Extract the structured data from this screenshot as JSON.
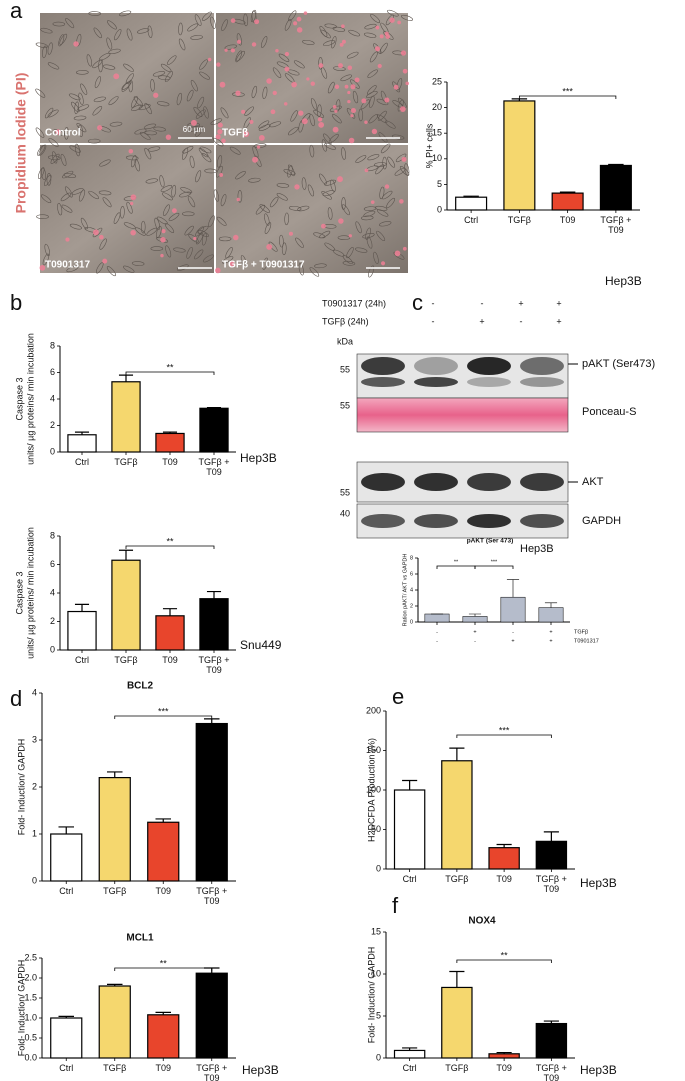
{
  "panel_labels": [
    "a",
    "b",
    "c",
    "d",
    "e",
    "f"
  ],
  "micrographs": {
    "side_label": "Propidium Iodide (PI)",
    "scale_bar": "60 µm",
    "images": [
      "Control",
      "TGFβ",
      "T0901317",
      "TGFβ + T0901317"
    ]
  },
  "blot": {
    "treatments": [
      {
        "name": "T0901317 (24h)",
        "signs": [
          "-",
          "-",
          "+",
          "+"
        ]
      },
      {
        "name": "TGFβ (24h)",
        "signs": [
          "-",
          "+",
          "-",
          "+"
        ]
      }
    ],
    "unit": "kDa",
    "bands": [
      {
        "marker": "55",
        "label": "pAKT (Ser473)"
      },
      {
        "marker": "55",
        "label": "Ponceau-S"
      },
      {
        "marker": "55",
        "label": "AKT"
      },
      {
        "marker": "40",
        "label": "GAPDH"
      }
    ],
    "cell_line": "Hep3B"
  },
  "chart_data": [
    {
      "type": "bar",
      "ylabel": [
        "% PI+ cells"
      ],
      "categories": [
        "Ctrl",
        "TGFβ",
        "T09",
        "TGFβ + T09"
      ],
      "values": [
        2.5,
        21.3,
        3.3,
        8.7
      ],
      "errors": [
        0.2,
        0.4,
        0.2,
        0.2
      ],
      "colors": [
        "#ffffff",
        "#f5d76e",
        "#e8452c",
        "#000000"
      ],
      "ylim": [
        0,
        25
      ],
      "yticks": [
        0,
        5,
        10,
        15,
        20,
        25
      ],
      "significance": {
        "pair": [
          1,
          3
        ],
        "label": "***"
      },
      "footnote": "Hep3B"
    },
    {
      "type": "bar",
      "ylabel": [
        "Caspase 3",
        "units/ µg proteins/ min incubation"
      ],
      "categories": [
        "Ctrl",
        "TGFβ",
        "T09",
        "TGFβ + T09"
      ],
      "values": [
        1.3,
        5.3,
        1.4,
        3.3
      ],
      "errors": [
        0.2,
        0.5,
        0.1,
        0.05
      ],
      "colors": [
        "#ffffff",
        "#f5d76e",
        "#e8452c",
        "#000000"
      ],
      "ylim": [
        0,
        8
      ],
      "yticks": [
        0,
        2,
        4,
        6,
        8
      ],
      "significance": {
        "pair": [
          1,
          3
        ],
        "label": "**"
      },
      "footnote": "Hep3B"
    },
    {
      "type": "bar",
      "ylabel": [
        "Caspase 3",
        "units/ µg proteins/ min incubation"
      ],
      "categories": [
        "Ctrl",
        "TGFβ",
        "T09",
        "TGFβ + T09"
      ],
      "values": [
        2.7,
        6.3,
        2.4,
        3.6
      ],
      "errors": [
        0.5,
        0.7,
        0.5,
        0.5
      ],
      "colors": [
        "#ffffff",
        "#f5d76e",
        "#e8452c",
        "#000000"
      ],
      "ylim": [
        0,
        8
      ],
      "yticks": [
        0,
        2,
        4,
        6,
        8
      ],
      "significance": {
        "pair": [
          1,
          3
        ],
        "label": "**"
      },
      "footnote": "Snu449"
    },
    {
      "type": "bar",
      "title": "pAKT (Ser 473)",
      "ylabel": [
        "Ration pAKT/ AKT vs GAPDH"
      ],
      "categories": [
        null,
        null,
        null,
        null
      ],
      "values": [
        1.0,
        0.7,
        3.1,
        1.8
      ],
      "errors": [
        0,
        0.3,
        2.2,
        0.6
      ],
      "colors": [
        "#b5bccb",
        "#b5bccb",
        "#b5bccb",
        "#b5bccb"
      ],
      "ylim": [
        0,
        8
      ],
      "yticks": [
        0,
        2,
        4,
        6,
        8
      ],
      "significance_pairs": [
        {
          "pair": [
            0,
            1
          ],
          "label": "**"
        },
        {
          "pair": [
            1,
            2
          ],
          "label": "***"
        }
      ],
      "x_rows": [
        {
          "name": "TGFβ",
          "signs": [
            "-",
            "+",
            "-",
            "+"
          ]
        },
        {
          "name": "T0901317",
          "signs": [
            "-",
            "-",
            "+",
            "+"
          ]
        }
      ]
    },
    {
      "type": "bar",
      "title": "BCL2",
      "ylabel": [
        "Fold- Induction/ GAPDH"
      ],
      "categories": [
        "Ctrl",
        "TGFβ",
        "T09",
        "TGFβ + T09"
      ],
      "values": [
        1.0,
        2.2,
        1.25,
        3.35
      ],
      "errors": [
        0.15,
        0.12,
        0.07,
        0.1
      ],
      "colors": [
        "#ffffff",
        "#f5d76e",
        "#e8452c",
        "#000000"
      ],
      "ylim": [
        0,
        4
      ],
      "yticks": [
        0,
        1,
        2,
        3,
        4
      ],
      "significance": {
        "pair": [
          1,
          3
        ],
        "label": "***"
      }
    },
    {
      "type": "bar",
      "title": "MCL1",
      "ylabel": [
        "Fold- Induction/ GAPDH"
      ],
      "categories": [
        "Ctrl",
        "TGFβ",
        "T09",
        "TGFβ + T09"
      ],
      "values": [
        1.0,
        1.8,
        1.08,
        2.12
      ],
      "errors": [
        0.04,
        0.04,
        0.06,
        0.13
      ],
      "colors": [
        "#ffffff",
        "#f5d76e",
        "#e8452c",
        "#000000"
      ],
      "ylim": [
        0,
        2.5
      ],
      "yticks": [
        {
          "value": 0,
          "label": "0.0"
        },
        {
          "value": 0.5,
          "label": "0.5"
        },
        {
          "value": 1,
          "label": "1.0"
        },
        {
          "value": 1.5,
          "label": "1.5"
        },
        {
          "value": 2,
          "label": "2.0"
        },
        {
          "value": 2.5,
          "label": "2.5"
        }
      ],
      "significance": {
        "pair": [
          1,
          3
        ],
        "label": "**"
      },
      "footnote": "Hep3B"
    },
    {
      "type": "bar",
      "ylabel": [
        "H2DCFDA Production (%)"
      ],
      "categories": [
        "Ctrl",
        "TGFβ",
        "T09",
        "TGFβ + T09"
      ],
      "values": [
        100,
        137,
        27,
        35
      ],
      "errors": [
        12,
        16,
        4,
        12
      ],
      "colors": [
        "#ffffff",
        "#f5d76e",
        "#e8452c",
        "#000000"
      ],
      "ylim": [
        0,
        200
      ],
      "yticks": [
        0,
        50,
        100,
        150,
        200
      ],
      "significance": {
        "pair": [
          1,
          3
        ],
        "label": "***"
      },
      "footnote": "Hep3B"
    },
    {
      "type": "bar",
      "title": "NOX4",
      "ylabel": [
        "Fold- Induction/ GAPDH"
      ],
      "categories": [
        "Ctrl",
        "TGFβ",
        "T09",
        "TGFβ + T09"
      ],
      "values": [
        0.9,
        8.4,
        0.5,
        4.1
      ],
      "errors": [
        0.3,
        1.9,
        0.15,
        0.3
      ],
      "colors": [
        "#ffffff",
        "#f5d76e",
        "#e8452c",
        "#000000"
      ],
      "ylim": [
        0,
        15
      ],
      "yticks": [
        0,
        5,
        10,
        15
      ],
      "significance": {
        "pair": [
          1,
          3
        ],
        "label": "**"
      },
      "footnote": "Hep3B"
    }
  ]
}
